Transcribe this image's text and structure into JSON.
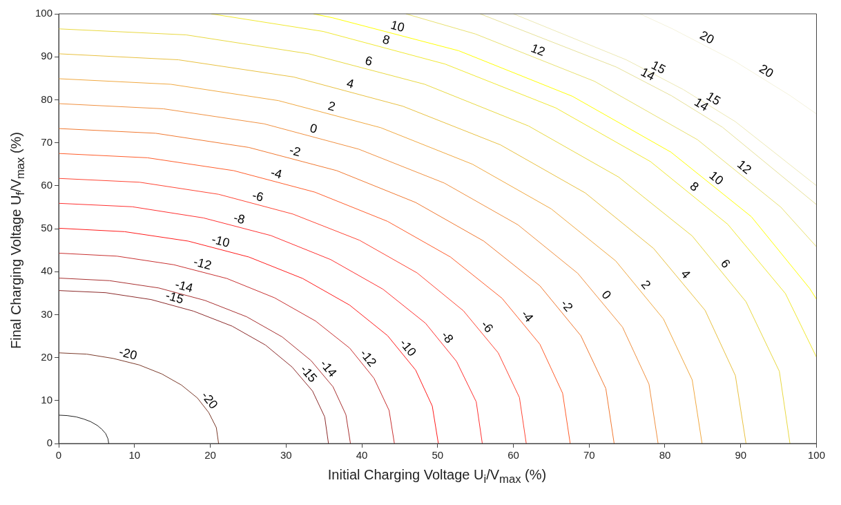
{
  "chart_data": {
    "type": "line",
    "xlabel": "Initial Charging Voltage U$_{i}$/V$_{max}$ (%)",
    "ylabel": "Final Charging Voltage U$_{f}$/V$_{max}$ (%)",
    "xlim": [
      0,
      100
    ],
    "ylim": [
      0,
      100
    ],
    "xticks": [
      0,
      10,
      20,
      30,
      40,
      50,
      60,
      70,
      80,
      90,
      100
    ],
    "yticks": [
      0,
      10,
      20,
      30,
      40,
      50,
      60,
      70,
      80,
      90,
      100
    ],
    "grid": false,
    "legend": false,
    "marker": "none",
    "line_style": "solid",
    "series": [
      {
        "color": "#202020",
        "x": [
          0,
          1.1,
          2.3,
          3.3,
          4.2,
          5.1,
          5.7,
          6.2,
          6.5,
          6.6
        ],
        "values": [
          6.6,
          6.5,
          6.2,
          5.7,
          5.1,
          4.2,
          3.3,
          2.3,
          1.1,
          0
        ]
      },
      {
        "name": "-20",
        "color": "#7a3a2a",
        "x": [
          0,
          3.7,
          7.2,
          10.6,
          13.6,
          16.2,
          18.3,
          19.8,
          20.8,
          21.1
        ],
        "values": [
          21.1,
          20.8,
          19.8,
          18.3,
          16.2,
          13.6,
          10.6,
          7.2,
          3.7,
          0
        ]
      },
      {
        "name": "-15",
        "color": "#8b2a2a",
        "x": [
          0,
          6.2,
          12.2,
          17.8,
          22.9,
          27.3,
          30.8,
          33.5,
          35.1,
          35.6
        ],
        "values": [
          35.6,
          35.1,
          33.5,
          30.8,
          27.3,
          22.9,
          17.8,
          12.2,
          6.2,
          0
        ]
      },
      {
        "name": "-14",
        "color": "#a83030",
        "x": [
          0,
          6.7,
          13.2,
          19.3,
          24.8,
          29.5,
          33.3,
          36.2,
          37.9,
          38.5
        ],
        "values": [
          38.5,
          37.9,
          36.2,
          33.3,
          29.5,
          24.8,
          19.3,
          13.2,
          6.7,
          0
        ]
      },
      {
        "name": "-12",
        "color": "#c83030",
        "x": [
          0,
          7.7,
          15.2,
          22.2,
          28.5,
          33.9,
          38.4,
          41.6,
          43.6,
          44.3
        ],
        "values": [
          44.3,
          43.6,
          41.6,
          38.4,
          33.9,
          28.5,
          22.2,
          15.2,
          7.7,
          0
        ]
      },
      {
        "name": "-10",
        "color": "#ff1a1a",
        "x": [
          0,
          8.7,
          17.1,
          25.1,
          32.2,
          38.4,
          43.4,
          47.1,
          49.3,
          50.1
        ],
        "values": [
          50.1,
          49.3,
          47.1,
          43.4,
          38.4,
          32.2,
          25.1,
          17.1,
          8.7,
          0
        ]
      },
      {
        "name": "-8",
        "color": "#ff3030",
        "x": [
          0,
          9.7,
          19.1,
          28,
          35.9,
          42.8,
          48.4,
          52.5,
          55.1,
          55.9
        ],
        "values": [
          55.9,
          55.1,
          52.5,
          48.4,
          42.8,
          35.9,
          28,
          19.1,
          9.7,
          0
        ]
      },
      {
        "name": "-6",
        "color": "#ff4433",
        "x": [
          0,
          10.7,
          21.1,
          30.9,
          39.7,
          47.3,
          53.4,
          58,
          60.8,
          61.7
        ],
        "values": [
          61.7,
          60.8,
          58,
          53.4,
          47.3,
          39.7,
          30.9,
          21.1,
          10.7,
          0
        ]
      },
      {
        "name": "-4",
        "color": "#ff5c2a",
        "x": [
          0,
          11.7,
          23.1,
          33.8,
          43.4,
          51.7,
          58.5,
          63.5,
          66.5,
          67.5
        ],
        "values": [
          67.5,
          66.5,
          63.5,
          58.5,
          51.7,
          43.4,
          33.8,
          23.1,
          11.7,
          0
        ]
      },
      {
        "name": "-2",
        "color": "#f07830",
        "x": [
          0,
          12.8,
          25.1,
          36.7,
          47.1,
          56.1,
          63.5,
          68.9,
          72.2,
          73.3
        ],
        "values": [
          73.3,
          72.2,
          68.9,
          63.5,
          56.1,
          47.1,
          36.7,
          25.1,
          12.8,
          0
        ]
      },
      {
        "name": "0",
        "color": "#f09040",
        "x": [
          0,
          13.8,
          27.1,
          39.6,
          50.9,
          60.6,
          68.5,
          74.4,
          77.9,
          79.1
        ],
        "values": [
          79.1,
          77.9,
          74.4,
          68.5,
          60.6,
          50.9,
          39.6,
          27.1,
          13.8,
          0
        ]
      },
      {
        "name": "2",
        "color": "#f0a840",
        "x": [
          0,
          14.8,
          29,
          42.5,
          54.6,
          65,
          73.5,
          79.8,
          83.6,
          84.9
        ],
        "values": [
          84.9,
          83.6,
          79.8,
          73.5,
          65,
          54.6,
          42.5,
          29,
          14.8,
          0
        ]
      },
      {
        "name": "4",
        "color": "#e8c040",
        "x": [
          0,
          15.8,
          31,
          45.4,
          58.3,
          69.5,
          78.5,
          85.3,
          89.3,
          90.7
        ],
        "values": [
          90.7,
          89.3,
          85.3,
          78.5,
          69.5,
          58.3,
          45.4,
          31,
          15.8,
          0
        ]
      },
      {
        "name": "6",
        "color": "#e8d840",
        "x": [
          0,
          16.8,
          33,
          48.3,
          62,
          73.9,
          83.6,
          90.7,
          95.1,
          96.5
        ],
        "values": [
          96.5,
          95.1,
          90.7,
          83.6,
          73.9,
          62,
          48.3,
          33,
          16.8,
          0
        ]
      },
      {
        "name": "8",
        "color": "#f0e830",
        "x": [
          20.1,
          34.9,
          51,
          65.6,
          78.1,
          88.3,
          95.9,
          100
        ],
        "values": [
          100,
          95.9,
          88.3,
          78.1,
          65.6,
          51,
          34.9,
          20.1
        ]
      },
      {
        "name": "10",
        "color": "#ffff00",
        "x": [
          33.6,
          36.1,
          52.8,
          67.8,
          80.8,
          91.4,
          99.1,
          100
        ],
        "values": [
          100,
          99.1,
          91.4,
          80.8,
          67.8,
          52.8,
          36.1,
          33.6
        ]
      },
      {
        "name": "12",
        "color": "#e8e070",
        "x": [
          45.8,
          55,
          70.7,
          84.3,
          95.3,
          100
        ],
        "values": [
          100,
          95.3,
          84.3,
          70.7,
          55,
          45.8
        ]
      },
      {
        "name": "14",
        "color": "#e6e098",
        "x": [
          55.6,
          73.6,
          80.9,
          87.6,
          100
        ],
        "values": [
          100,
          87.6,
          80.9,
          73.6,
          55.6
        ]
      },
      {
        "name": "15",
        "color": "#ece8b4",
        "x": [
          60,
          74.9,
          82.4,
          89.3,
          100
        ],
        "values": [
          100,
          89.3,
          82.4,
          74.9,
          60
        ]
      },
      {
        "name": "20",
        "color": "#f4f2dc",
        "x": [
          76.7,
          81,
          89.1,
          96.5,
          100
        ],
        "values": [
          100,
          96.5,
          89.1,
          81,
          76.7
        ]
      }
    ]
  }
}
